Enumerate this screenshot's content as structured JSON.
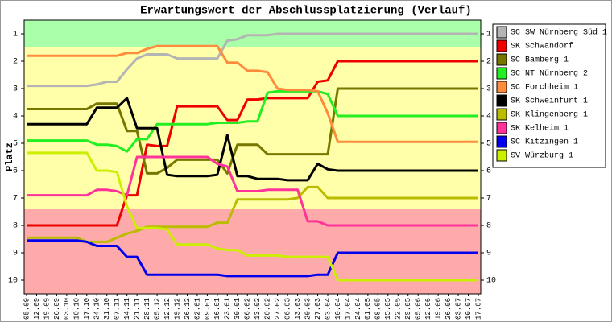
{
  "chart_data": {
    "type": "line",
    "title": "Erwartungswert der Abschlussplatzierung (Verlauf)",
    "y_label": "Platz",
    "y_inverted": true,
    "ylim": [
      0.5,
      10.5
    ],
    "yticks": [
      1,
      2,
      3,
      4,
      5,
      6,
      7,
      8,
      9,
      10
    ],
    "categories": [
      "05.09",
      "12.09",
      "19.09",
      "26.09",
      "03.10",
      "10.10",
      "17.10",
      "24.10",
      "31.10",
      "07.11",
      "14.11",
      "21.11",
      "28.11",
      "05.12",
      "12.12",
      "19.12",
      "26.12",
      "02.01",
      "09.01",
      "16.01",
      "23.01",
      "30.01",
      "06.02",
      "13.02",
      "20.02",
      "27.02",
      "06.03",
      "13.03",
      "20.03",
      "27.03",
      "03.04",
      "10.04",
      "17.04",
      "24.04",
      "01.05",
      "08.05",
      "15.05",
      "22.05",
      "29.05",
      "05.06",
      "12.06",
      "19.06",
      "26.06",
      "03.07",
      "10.07",
      "17.07"
    ],
    "series": [
      {
        "name": "SC SW Nürnberg Süd 1",
        "color": "#b4b4b4",
        "values": [
          2.9,
          2.9,
          2.9,
          2.9,
          2.9,
          2.9,
          2.9,
          2.85,
          2.75,
          2.75,
          2.3,
          1.9,
          1.75,
          1.75,
          1.75,
          1.9,
          1.9,
          1.9,
          1.9,
          1.9,
          1.25,
          1.2,
          1.05,
          1.05,
          1.05,
          1,
          1,
          1,
          1,
          1,
          1,
          1,
          1,
          1,
          1,
          1,
          1,
          1,
          1,
          1,
          1,
          1,
          1,
          1,
          1,
          1
        ]
      },
      {
        "name": "SK Schwandorf",
        "color": "#ee0000",
        "values": [
          8,
          8,
          8,
          8,
          8,
          8,
          8,
          8,
          8,
          8,
          6.9,
          6.9,
          5.05,
          5.1,
          5.1,
          3.65,
          3.65,
          3.65,
          3.65,
          3.65,
          4.15,
          4.15,
          3.4,
          3.4,
          3.35,
          3.35,
          3.35,
          3.35,
          3.35,
          2.75,
          2.7,
          2,
          2,
          2,
          2,
          2,
          2,
          2,
          2,
          2,
          2,
          2,
          2,
          2,
          2,
          2
        ]
      },
      {
        "name": "SC Bamberg 1",
        "color": "#777700",
        "values": [
          3.75,
          3.75,
          3.75,
          3.75,
          3.75,
          3.75,
          3.75,
          3.55,
          3.55,
          3.55,
          4.55,
          4.55,
          6.1,
          6.1,
          5.9,
          5.6,
          5.6,
          5.6,
          5.6,
          5.6,
          6.1,
          5.05,
          5.05,
          5.05,
          5.4,
          5.4,
          5.4,
          5.4,
          5.4,
          5.4,
          5.4,
          3,
          3,
          3,
          3,
          3,
          3,
          3,
          3,
          3,
          3,
          3,
          3,
          3,
          3,
          3
        ]
      },
      {
        "name": "SC NT Nürnberg 2",
        "color": "#22ee22",
        "values": [
          4.9,
          4.9,
          4.9,
          4.9,
          4.9,
          4.9,
          4.9,
          5.05,
          5.05,
          5.1,
          5.3,
          4.85,
          4.85,
          4.3,
          4.3,
          4.3,
          4.3,
          4.3,
          4.3,
          4.25,
          4.25,
          4.25,
          4.2,
          4.2,
          3.15,
          3.1,
          3.1,
          3.1,
          3.1,
          3.1,
          3.2,
          4,
          4,
          4,
          4,
          4,
          4,
          4,
          4,
          4,
          4,
          4,
          4,
          4,
          4,
          4
        ]
      },
      {
        "name": "SC Forchheim 1",
        "color": "#ff8c3c",
        "values": [
          1.8,
          1.8,
          1.8,
          1.8,
          1.8,
          1.8,
          1.8,
          1.8,
          1.8,
          1.8,
          1.7,
          1.7,
          1.55,
          1.45,
          1.45,
          1.45,
          1.45,
          1.45,
          1.45,
          1.45,
          2.05,
          2.05,
          2.35,
          2.35,
          2.4,
          3,
          3.05,
          3.05,
          3.05,
          3.1,
          3.9,
          4.95,
          4.95,
          4.95,
          4.95,
          4.95,
          4.95,
          4.95,
          4.95,
          4.95,
          4.95,
          4.95,
          4.95,
          4.95,
          4.95,
          4.95
        ]
      },
      {
        "name": "SK Schweinfurt 1",
        "color": "#000000",
        "values": [
          4.3,
          4.3,
          4.3,
          4.3,
          4.3,
          4.3,
          4.3,
          3.7,
          3.7,
          3.7,
          3.35,
          4.45,
          4.45,
          4.45,
          6.15,
          6.2,
          6.2,
          6.2,
          6.2,
          6.15,
          4.7,
          6.2,
          6.2,
          6.3,
          6.3,
          6.3,
          6.35,
          6.35,
          6.35,
          5.75,
          5.95,
          6,
          6,
          6,
          6,
          6,
          6,
          6,
          6,
          6,
          6,
          6,
          6,
          6,
          6,
          6
        ]
      },
      {
        "name": "SK Klingenberg 1",
        "color": "#bbbb00",
        "values": [
          8.45,
          8.45,
          8.45,
          8.45,
          8.45,
          8.45,
          8.6,
          8.6,
          8.6,
          8.45,
          8.3,
          8.2,
          8.05,
          8.05,
          8.05,
          8.05,
          8.05,
          8.05,
          8.05,
          7.9,
          7.9,
          7.05,
          7.05,
          7.05,
          7.05,
          7.05,
          7.05,
          7,
          6.6,
          6.6,
          7,
          7,
          7,
          7,
          7,
          7,
          7,
          7,
          7,
          7,
          7,
          7,
          7,
          7,
          7,
          7
        ]
      },
      {
        "name": "SK Kelheim 1",
        "color": "#ff3399",
        "values": [
          6.9,
          6.9,
          6.9,
          6.9,
          6.9,
          6.9,
          6.9,
          6.7,
          6.7,
          6.75,
          6.9,
          5.5,
          5.5,
          5.5,
          5.5,
          5.5,
          5.5,
          5.5,
          5.5,
          5.75,
          5.85,
          6.75,
          6.75,
          6.75,
          6.7,
          6.7,
          6.7,
          6.7,
          7.85,
          7.85,
          8,
          8,
          8,
          8,
          8,
          8,
          8,
          8,
          8,
          8,
          8,
          8,
          8,
          8,
          8,
          8
        ]
      },
      {
        "name": "SC Kitzingen 1",
        "color": "#0000ee",
        "values": [
          8.55,
          8.55,
          8.55,
          8.55,
          8.55,
          8.55,
          8.6,
          8.75,
          8.75,
          8.75,
          9.15,
          9.15,
          9.8,
          9.8,
          9.8,
          9.8,
          9.8,
          9.8,
          9.8,
          9.8,
          9.85,
          9.85,
          9.85,
          9.85,
          9.85,
          9.85,
          9.85,
          9.85,
          9.85,
          9.8,
          9.8,
          9,
          9,
          9,
          9,
          9,
          9,
          9,
          9,
          9,
          9,
          9,
          9,
          9,
          9,
          9
        ]
      },
      {
        "name": "SV Würzburg 1",
        "color": "#ccee00",
        "values": [
          5.35,
          5.35,
          5.35,
          5.35,
          5.35,
          5.35,
          5.35,
          6,
          6,
          6.05,
          7.3,
          8.1,
          8.1,
          8.1,
          8.15,
          8.7,
          8.7,
          8.7,
          8.7,
          8.85,
          8.9,
          8.9,
          9.1,
          9.1,
          9.1,
          9.1,
          9.15,
          9.15,
          9.15,
          9.15,
          9.15,
          10,
          10,
          10,
          10,
          10,
          10,
          10,
          10,
          10,
          10,
          10,
          10,
          10,
          10,
          10
        ]
      }
    ]
  }
}
